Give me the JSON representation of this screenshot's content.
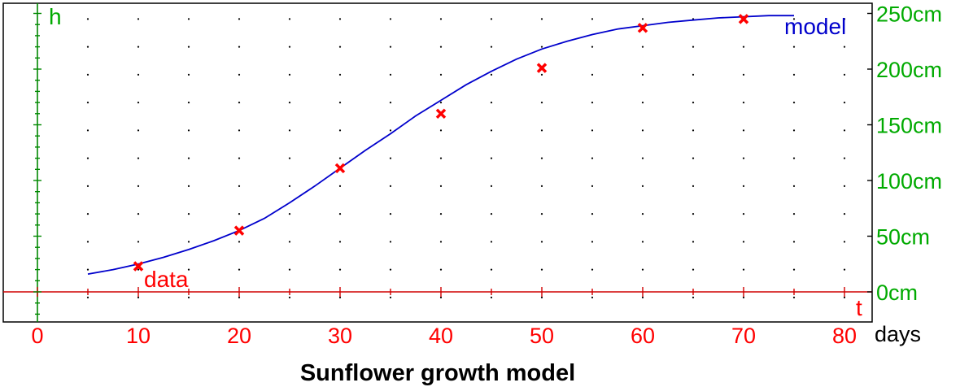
{
  "chart_data": {
    "type": "scatter",
    "title": "Sunflower growth model",
    "x_axis_letter": "t",
    "y_axis_letter": "h",
    "x_unit_label": "days",
    "y_unit": "cm",
    "xlim": [
      -3,
      82
    ],
    "ylim": [
      -25,
      265
    ],
    "x_ticks": [
      0,
      10,
      20,
      30,
      40,
      50,
      60,
      70,
      80
    ],
    "y_ticks": [
      0,
      50,
      100,
      150,
      200,
      250
    ],
    "x_tick_labels": [
      "0",
      "10",
      "20",
      "30",
      "40",
      "50",
      "60",
      "70",
      "80"
    ],
    "y_tick_labels": [
      "0cm",
      "50cm",
      "100cm",
      "150cm",
      "200cm",
      "250cm"
    ],
    "grid": "dotted",
    "series": [
      {
        "name": "data",
        "kind": "points",
        "marker": "x",
        "color": "#ff0000",
        "x": [
          10,
          20,
          30,
          40,
          50,
          60,
          70
        ],
        "y": [
          23,
          55,
          111,
          160,
          201,
          237,
          245
        ]
      },
      {
        "name": "model",
        "kind": "line",
        "color": "#0000cc",
        "x": [
          5,
          7.5,
          10,
          12.5,
          15,
          17.5,
          20,
          22.5,
          25,
          27.5,
          30,
          32.5,
          35,
          37.5,
          40,
          42.5,
          45,
          47.5,
          50,
          52.5,
          55,
          57.5,
          60,
          62.5,
          65,
          67.5,
          70,
          72.5,
          75
        ],
        "y": [
          16,
          20,
          25,
          31,
          38,
          46,
          55,
          66,
          80,
          95,
          111,
          127,
          142,
          158,
          172,
          186,
          198,
          209,
          218,
          225,
          231,
          236,
          239,
          242,
          244,
          246,
          247,
          248,
          248
        ]
      }
    ],
    "colors": {
      "x_axis": "#d00000",
      "y_axis": "#008800",
      "x_labels": "#ff0000",
      "y_labels": "#00aa00",
      "title": "#000000"
    }
  }
}
